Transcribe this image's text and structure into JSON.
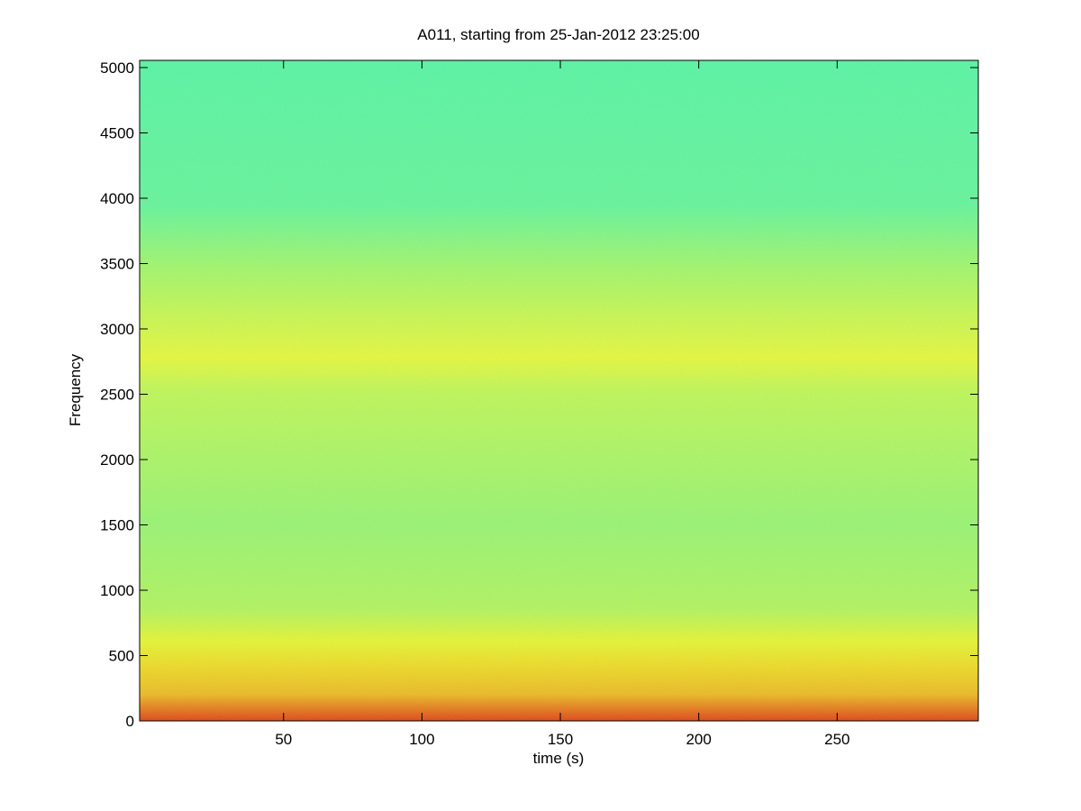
{
  "chart_data": {
    "type": "spectrogram",
    "title": "A011, starting from 25-Jan-2012 23:25:00",
    "x_label": "time (s)",
    "y_label": "Frequency",
    "xlim": [
      -2,
      301
    ],
    "xticks": [
      50,
      100,
      150,
      200,
      250
    ],
    "ylim": [
      0,
      5055
    ],
    "yticks": [
      0,
      500,
      1000,
      1500,
      2000,
      2500,
      3000,
      3500,
      4000,
      4500,
      5000
    ]
  }
}
